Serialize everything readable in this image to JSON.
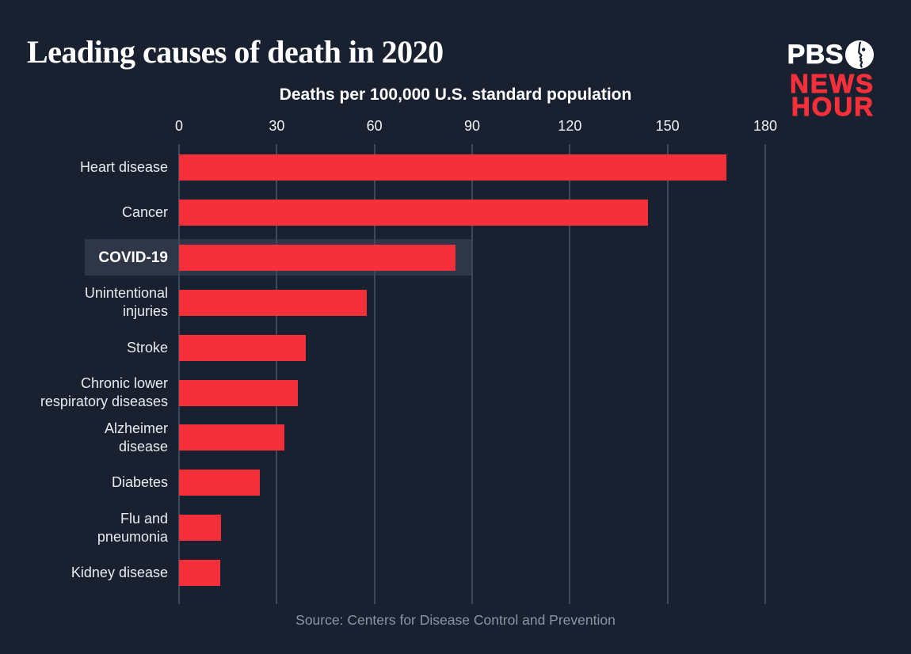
{
  "header": {
    "title": "Leading causes of death in 2020",
    "logo": {
      "pbs": "PBS",
      "news": "NEWS",
      "hour": "HOUR"
    }
  },
  "chart_data": {
    "type": "bar",
    "orientation": "horizontal",
    "title": "Leading causes of death in 2020",
    "axis_title": "Deaths per 100,000 U.S. standard population",
    "xlabel": "Deaths per 100,000 U.S. standard population",
    "ylabel": "",
    "xlim": [
      0,
      180
    ],
    "ticks": [
      0,
      30,
      60,
      90,
      120,
      150,
      180
    ],
    "grid": true,
    "categories": [
      "Heart disease",
      "Cancer",
      "COVID-19",
      "Unintentional injuries",
      "Stroke",
      "Chronic lower respiratory diseases",
      "Alzheimer disease",
      "Diabetes",
      "Flu and pneumonia",
      "Kidney disease"
    ],
    "label_lines": [
      [
        "Heart disease"
      ],
      [
        "Cancer"
      ],
      [
        "COVID-19"
      ],
      [
        "Unintentional",
        "injuries"
      ],
      [
        "Stroke"
      ],
      [
        "Chronic lower",
        "respiratory diseases"
      ],
      [
        "Alzheimer",
        "disease"
      ],
      [
        "Diabetes"
      ],
      [
        "Flu and",
        "pneumonia"
      ],
      [
        "Kidney disease"
      ]
    ],
    "values": [
      168.2,
      144.1,
      85.0,
      57.6,
      38.8,
      36.4,
      32.4,
      24.8,
      13.0,
      12.7
    ],
    "highlight_index": 2,
    "highlighted_category": "COVID-19"
  },
  "footer": {
    "source": "Source: Centers for Disease Control and Prevention"
  },
  "colors": {
    "background": "#192130",
    "bar_red": "#f6303a",
    "gridline": "#3d4859",
    "category_label": "#e8ebef",
    "tick_label": "#f0f3f6",
    "title_text": "#ffffff",
    "source_text": "#8b95a4",
    "highlight_box": "#2f3648",
    "logo_red": "#f6303a"
  }
}
